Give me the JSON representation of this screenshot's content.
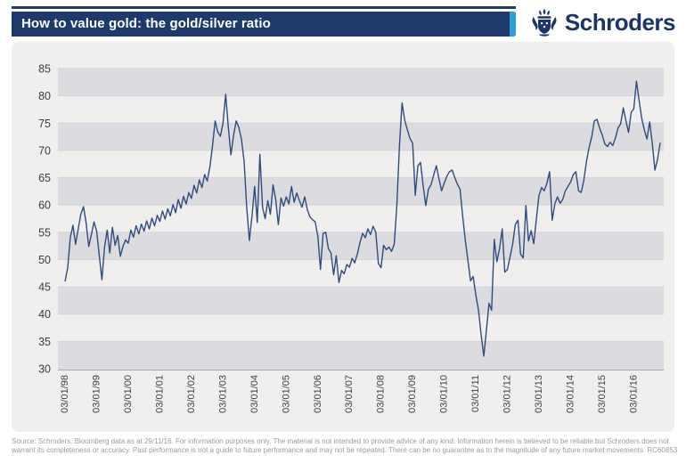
{
  "header": {
    "title": "How to value gold: the gold/silver ratio",
    "brand": "Schroders",
    "colors": {
      "navy": "#1e3a6c",
      "accent_blue": "#2aa0d8",
      "logo_navy": "#1b356b"
    }
  },
  "footer": {
    "line1": "Source: Schroders. Bloomberg data as at 29/11/16. For information purposes only. The material is not intended to provide advice of any kind. Information herein is believed to be reliable but Schroders does not",
    "line2": "warrant its completeness or accuracy. Past performance is not a guide to future performance and may not be repeated. There can be no guarantee as to the magnitude of any future market movements. RC60853"
  },
  "chart_data": {
    "type": "line",
    "title": "How to value gold: the gold/silver ratio",
    "xlabel": "",
    "ylabel": "",
    "ylim": [
      30,
      85
    ],
    "y_ticks": [
      85,
      80,
      75,
      70,
      65,
      60,
      55,
      50,
      45,
      40,
      35,
      30
    ],
    "gray_bands": [
      [
        80,
        85
      ],
      [
        70,
        75
      ],
      [
        60,
        65
      ],
      [
        50,
        55
      ],
      [
        40,
        45
      ],
      [
        30,
        35
      ]
    ],
    "grid": "horizontal-bands",
    "legend_position": "none",
    "band_color": "#dcdbdf",
    "background_color": "#f0efed",
    "x_tick_labels": [
      "03/01/98",
      "03/01/99",
      "03/01/00",
      "03/01/01",
      "03/01/02",
      "03/01/03",
      "03/01/04",
      "03/01/05",
      "03/01/06",
      "03/01/07",
      "03/01/08",
      "03/01/09",
      "03/01/10",
      "03/01/11",
      "03/01/12",
      "03/01/13",
      "03/01/14",
      "03/01/15",
      "03/01/16"
    ],
    "x_frequency": "monthly",
    "x_range": "Jan 1998 - Nov 2016",
    "series": [
      {
        "name": "Gold/silver ratio",
        "color": "#2f4d7c",
        "values": [
          46.0,
          48.5,
          54.0,
          56.3,
          52.8,
          55.6,
          58.3,
          59.7,
          56.8,
          52.4,
          54.6,
          56.9,
          55.2,
          50.8,
          46.3,
          52.2,
          55.4,
          51.2,
          55.9,
          52.6,
          54.4,
          50.6,
          52.4,
          53.6,
          53.0,
          55.4,
          54.1,
          56.2,
          54.7,
          56.5,
          55.2,
          57.1,
          55.6,
          57.6,
          56.2,
          58.1,
          57.0,
          58.9,
          57.4,
          59.3,
          58.0,
          60.1,
          58.6,
          61.0,
          59.4,
          61.6,
          60.2,
          62.3,
          61.2,
          63.6,
          62.2,
          64.6,
          63.2,
          65.6,
          64.4,
          67.0,
          70.8,
          75.4,
          73.4,
          72.6,
          75.0,
          80.3,
          74.2,
          69.2,
          72.8,
          75.4,
          74.2,
          72.1,
          68.0,
          59.6,
          53.5,
          58.0,
          63.4,
          56.8,
          69.3,
          59.6,
          57.5,
          60.8,
          58.3,
          63.7,
          61.0,
          56.4,
          61.3,
          59.8,
          61.5,
          60.2,
          63.4,
          60.5,
          62.2,
          60.8,
          59.6,
          61.5,
          59.2,
          57.8,
          57.3,
          56.9,
          54.2,
          48.2,
          54.8,
          55.0,
          52.0,
          51.2,
          47.2,
          50.7,
          45.8,
          48.0,
          47.4,
          49.1,
          48.6,
          50.2,
          49.4,
          51.0,
          53.1,
          54.8,
          54.0,
          55.6,
          54.6,
          56.1,
          55.0,
          49.3,
          48.5,
          52.6,
          51.8,
          52.3,
          51.5,
          52.8,
          59.8,
          71.0,
          78.7,
          75.5,
          73.8,
          72.2,
          71.3,
          61.8,
          67.2,
          67.8,
          63.5,
          59.9,
          62.9,
          63.7,
          65.5,
          67.2,
          64.8,
          62.6,
          64.0,
          65.3,
          66.1,
          66.4,
          65.0,
          63.8,
          62.9,
          58.0,
          53.5,
          49.9,
          46.1,
          46.9,
          43.5,
          40.7,
          36.3,
          32.3,
          36.9,
          42.0,
          40.7,
          53.7,
          49.6,
          52.0,
          55.6,
          47.7,
          48.2,
          50.5,
          52.9,
          56.4,
          57.2,
          51.0,
          50.3,
          59.9,
          53.4,
          55.3,
          52.9,
          57.5,
          61.8,
          63.2,
          62.6,
          64.0,
          66.1,
          57.2,
          60.2,
          61.5,
          60.3,
          61.0,
          62.6,
          63.4,
          64.2,
          65.6,
          66.1,
          62.6,
          62.3,
          64.5,
          67.9,
          70.5,
          72.5,
          75.4,
          75.7,
          74.1,
          72.8,
          71.2,
          70.7,
          71.5,
          70.9,
          72.3,
          74.1,
          74.9,
          77.8,
          75.4,
          73.3,
          77.0,
          77.6,
          82.7,
          79.1,
          75.9,
          73.7,
          72.1,
          75.2,
          71.4,
          66.4,
          68.3,
          71.4
        ]
      }
    ]
  }
}
